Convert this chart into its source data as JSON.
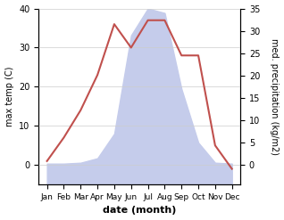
{
  "months": [
    "Jan",
    "Feb",
    "Mar",
    "Apr",
    "May",
    "Jun",
    "Jul",
    "Aug",
    "Sep",
    "Oct",
    "Nov",
    "Dec"
  ],
  "month_indices": [
    1,
    2,
    3,
    4,
    5,
    6,
    7,
    8,
    9,
    10,
    11,
    12
  ],
  "temperature": [
    1,
    7,
    14,
    23,
    36,
    30,
    37,
    37,
    28,
    28,
    5,
    -1
  ],
  "precipitation": [
    0.3,
    0.3,
    0.5,
    1.5,
    7,
    29,
    35,
    34,
    17,
    5,
    0.5,
    0.3
  ],
  "temp_color": "#c0504d",
  "precip_fill_color": "#c5cceb",
  "precip_edge_color": "#c5cceb",
  "background_color": "#ffffff",
  "ylim_temp": [
    -5,
    40
  ],
  "ylim_precip": [
    -4.375,
    35
  ],
  "ylabel_left": "max temp (C)",
  "ylabel_right": "med. precipitation (kg/m2)",
  "xlabel": "date (month)",
  "temp_yticks": [
    0,
    10,
    20,
    30,
    40
  ],
  "precip_yticks": [
    0,
    5,
    10,
    15,
    20,
    25,
    30,
    35
  ],
  "grid_color": "#cccccc",
  "temp_linewidth": 1.5
}
